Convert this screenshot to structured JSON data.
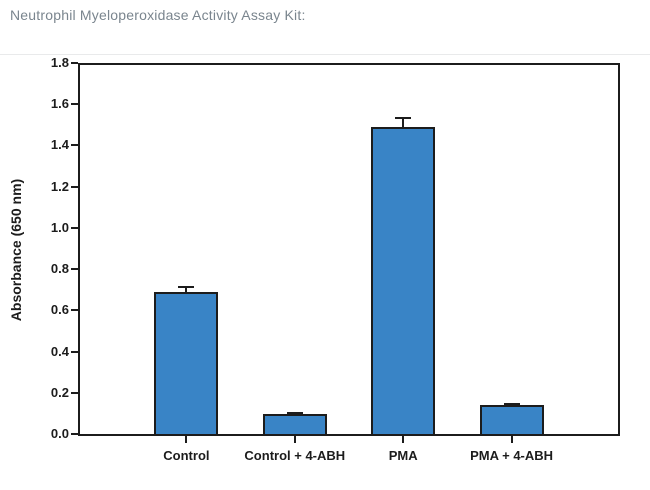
{
  "page": {
    "title": "Neutrophil Myeloperoxidase Activity Assay Kit:"
  },
  "chart_data": {
    "type": "bar",
    "title": "Neutrophil Myeloperoxidase Activity Assay Kit",
    "categories": [
      "Control",
      "Control + 4-ABH",
      "PMA",
      "PMA + 4-ABH"
    ],
    "values": [
      0.69,
      0.095,
      1.49,
      0.14
    ],
    "errors_plus": [
      0.025,
      0.005,
      0.045,
      0.005
    ],
    "xlabel": "",
    "ylabel": "Absorbance (650 nm)",
    "ylim": [
      0,
      1.8
    ],
    "ytick_step": 0.2,
    "ytick_labels": [
      "0.0",
      "0.2",
      "0.4",
      "0.6",
      "0.8",
      "1.0",
      "1.2",
      "1.4",
      "1.6",
      "1.8"
    ],
    "grid": false,
    "legend": "none",
    "bar_color": "#3984c6",
    "bar_edge_color": "#1c1c1c",
    "axis_color": "#1c1c1c"
  },
  "colors": {
    "background": "#ffffff",
    "title_text": "#7a858e",
    "divider": "#e9eaeb"
  }
}
